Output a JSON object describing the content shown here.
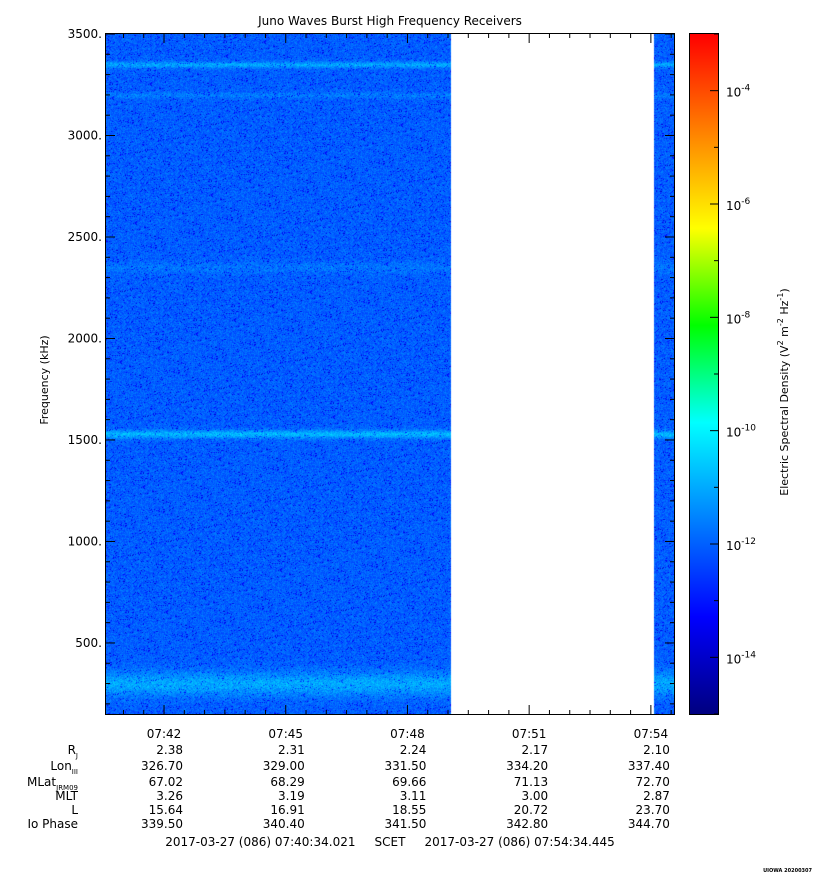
{
  "chart_data": {
    "type": "heatmap",
    "title": "Juno Waves Burst High Frequency Receivers",
    "ylabel": "Frequency (kHz)",
    "ylim": [
      150,
      3500
    ],
    "y_ticks": [
      {
        "v": 500,
        "label": "500."
      },
      {
        "v": 1000,
        "label": "1000."
      },
      {
        "v": 1500,
        "label": "1500."
      },
      {
        "v": 2000,
        "label": "2000."
      },
      {
        "v": 2500,
        "label": "2500."
      },
      {
        "v": 3000,
        "label": "3000."
      },
      {
        "v": 3500,
        "label": "3500."
      }
    ],
    "x_ticks": [
      "07:42",
      "07:45",
      "07:48",
      "07:51",
      "07:54"
    ],
    "colorbar": {
      "label_main": "Electric Spectral Density (V",
      "label_sup1": "2",
      "label_mid": " m",
      "label_sup2": "-2",
      "label_hz": " Hz",
      "label_sup3": "-1",
      "label_end": ")",
      "log_range": [
        -15,
        -3
      ],
      "ticks": [
        {
          "base": "10",
          "exp": "-4",
          "log": -4
        },
        {
          "base": "10",
          "exp": "-6",
          "log": -6
        },
        {
          "base": "10",
          "exp": "-8",
          "log": -8
        },
        {
          "base": "10",
          "exp": "-10",
          "log": -10
        },
        {
          "base": "10",
          "exp": "-12",
          "log": -12
        },
        {
          "base": "10",
          "exp": "-14",
          "log": -14
        }
      ],
      "colors": [
        "#000080",
        "#0000ff",
        "#0080ff",
        "#00ffff",
        "#00ff00",
        "#ffff00",
        "#ff8000",
        "#ff0000"
      ]
    },
    "background_level_log": -12,
    "data_gap_minutes": [
      8.5,
      13.5
    ],
    "bands_khz": [
      {
        "center": 300,
        "width": 60,
        "log": -11
      },
      {
        "center": 1530,
        "width": 20,
        "log": -10.8
      },
      {
        "center": 3350,
        "width": 15,
        "log": -11
      },
      {
        "center": 3200,
        "width": 15,
        "log": -11.6
      },
      {
        "center": 2350,
        "width": 30,
        "log": -11.7
      }
    ],
    "ephemeris": {
      "labels": [
        {
          "main": "R",
          "sub": "J"
        },
        {
          "main": "Lon",
          "sub": "III"
        },
        {
          "main": "MLat",
          "sub": "JRM09"
        },
        {
          "main": "MLT",
          "sub": ""
        },
        {
          "main": "L",
          "sub": ""
        },
        {
          "main": "Io Phase",
          "sub": ""
        }
      ],
      "rows": [
        [
          "2.38",
          "2.31",
          "2.24",
          "2.17",
          "2.10"
        ],
        [
          "326.70",
          "329.00",
          "331.50",
          "334.20",
          "337.40"
        ],
        [
          "67.02",
          "68.29",
          "69.66",
          "71.13",
          "72.70"
        ],
        [
          "3.26",
          "3.19",
          "3.11",
          "3.00",
          "2.87"
        ],
        [
          "15.64",
          "16.91",
          "18.55",
          "20.72",
          "23.70"
        ],
        [
          "339.50",
          "340.40",
          "341.50",
          "342.80",
          "344.70"
        ]
      ]
    },
    "time_range_label": "2017-03-27 (086) 07:40:34.021     SCET     2017-03-27 (086) 07:54:34.445"
  },
  "footer": {
    "stamp": "UIOWA 20200307"
  }
}
